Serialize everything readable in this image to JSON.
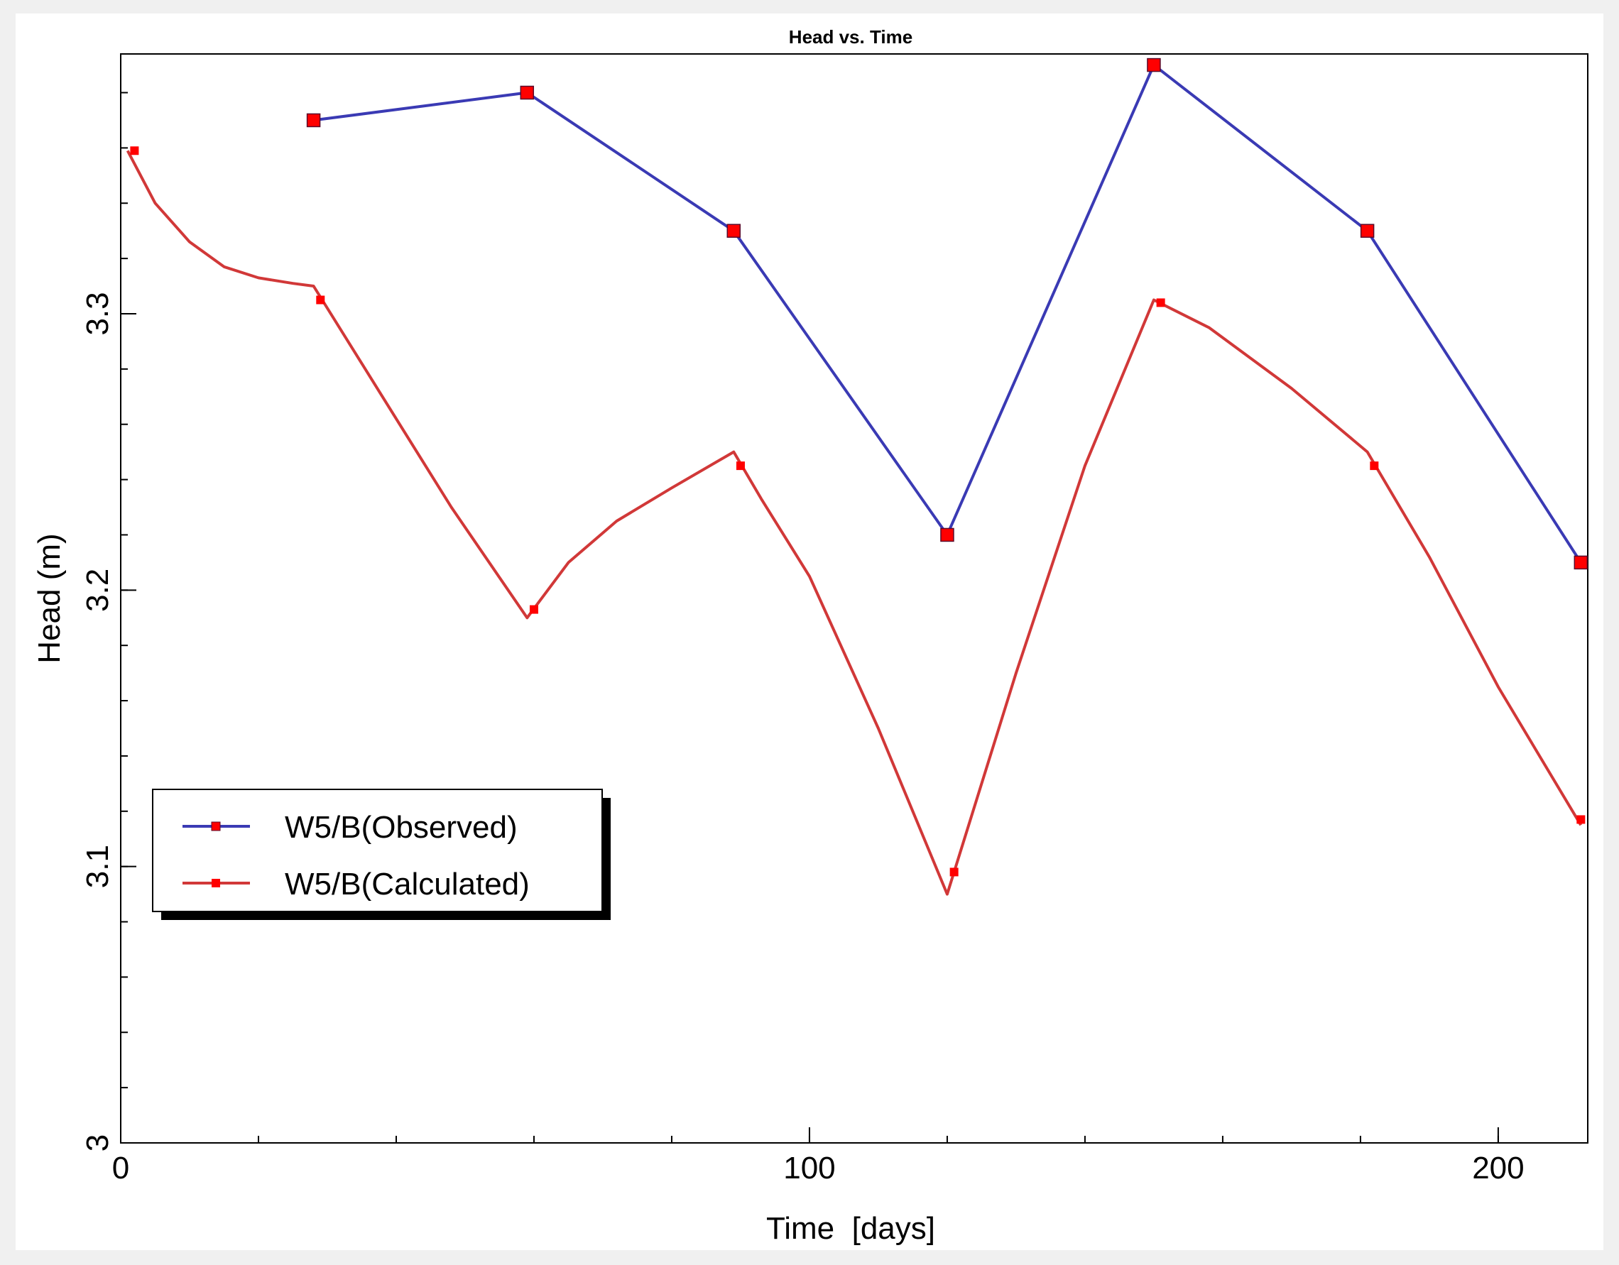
{
  "chart_data": {
    "type": "line",
    "title": "Head vs. Time",
    "xlabel": "Time  [days]",
    "ylabel": "Head (m)",
    "xlim": [
      0,
      213
    ],
    "ylim": [
      3.0,
      3.394
    ],
    "x_ticks": [
      {
        "value": 0,
        "label": "0"
      },
      {
        "value": 100,
        "label": "100"
      },
      {
        "value": 200,
        "label": "200"
      }
    ],
    "y_ticks": [
      {
        "value": 3.0,
        "label": "3"
      },
      {
        "value": 3.1,
        "label": "3.1"
      },
      {
        "value": 3.2,
        "label": "3.2"
      },
      {
        "value": 3.3,
        "label": "3.3"
      }
    ],
    "x_minor_step": 20,
    "y_minor_step": 0.02,
    "legend_position": "lower-left",
    "series": [
      {
        "name": "W5/B(Observed)",
        "color": "#3a3ab4",
        "marker_color": "#ff0000",
        "marker": "square-large",
        "x": [
          28,
          59,
          89,
          120,
          150,
          181,
          212
        ],
        "y": [
          3.37,
          3.38,
          3.33,
          3.22,
          3.39,
          3.33,
          3.21
        ]
      },
      {
        "name": "W5/B(Calculated)",
        "color": "#d13838",
        "marker_color": "#ff0000",
        "marker": "square-small",
        "x": [
          1,
          5,
          10,
          15,
          20,
          25,
          28,
          38,
          48,
          59,
          65,
          72,
          80,
          89,
          93,
          100,
          110,
          120,
          130,
          140,
          150,
          158,
          170,
          181,
          190,
          200,
          212
        ],
        "y": [
          3.359,
          3.34,
          3.326,
          3.317,
          3.313,
          3.311,
          3.31,
          3.27,
          3.23,
          3.19,
          3.21,
          3.225,
          3.237,
          3.25,
          3.233,
          3.205,
          3.15,
          3.09,
          3.17,
          3.245,
          3.305,
          3.295,
          3.273,
          3.25,
          3.212,
          3.165,
          3.115
        ],
        "marker_x": [
          2,
          29,
          60,
          90,
          121,
          151,
          182,
          212
        ],
        "marker_y": [
          3.359,
          3.305,
          3.193,
          3.245,
          3.098,
          3.304,
          3.245,
          3.117
        ]
      }
    ]
  }
}
